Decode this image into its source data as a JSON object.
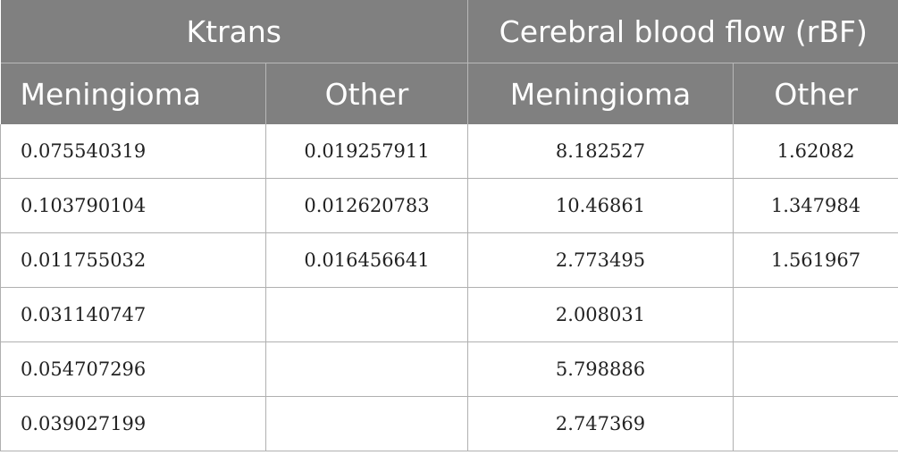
{
  "header": {
    "group_ktrans": "Ktrans",
    "group_rbf": "Cerebral blood flow (rBF)",
    "col_meningioma_1": "Meningioma",
    "col_other_1": "Other",
    "col_meningioma_2": "Meningioma",
    "col_other_2": "Other"
  },
  "rows": [
    [
      "0.075540319",
      "0.019257911",
      "8.182527",
      "1.62082"
    ],
    [
      "0.103790104",
      "0.012620783",
      "10.46861",
      "1.347984"
    ],
    [
      "0.011755032",
      "0.016456641",
      "2.773495",
      "1.561967"
    ],
    [
      "0.031140747",
      "",
      "2.008031",
      ""
    ],
    [
      "0.054707296",
      "",
      "5.798886",
      ""
    ],
    [
      "0.039027199",
      "",
      "2.747369",
      ""
    ]
  ],
  "colors": {
    "header_bg": "#808080",
    "header_text": "#ffffff",
    "grid_line": "#b0b0b0"
  }
}
